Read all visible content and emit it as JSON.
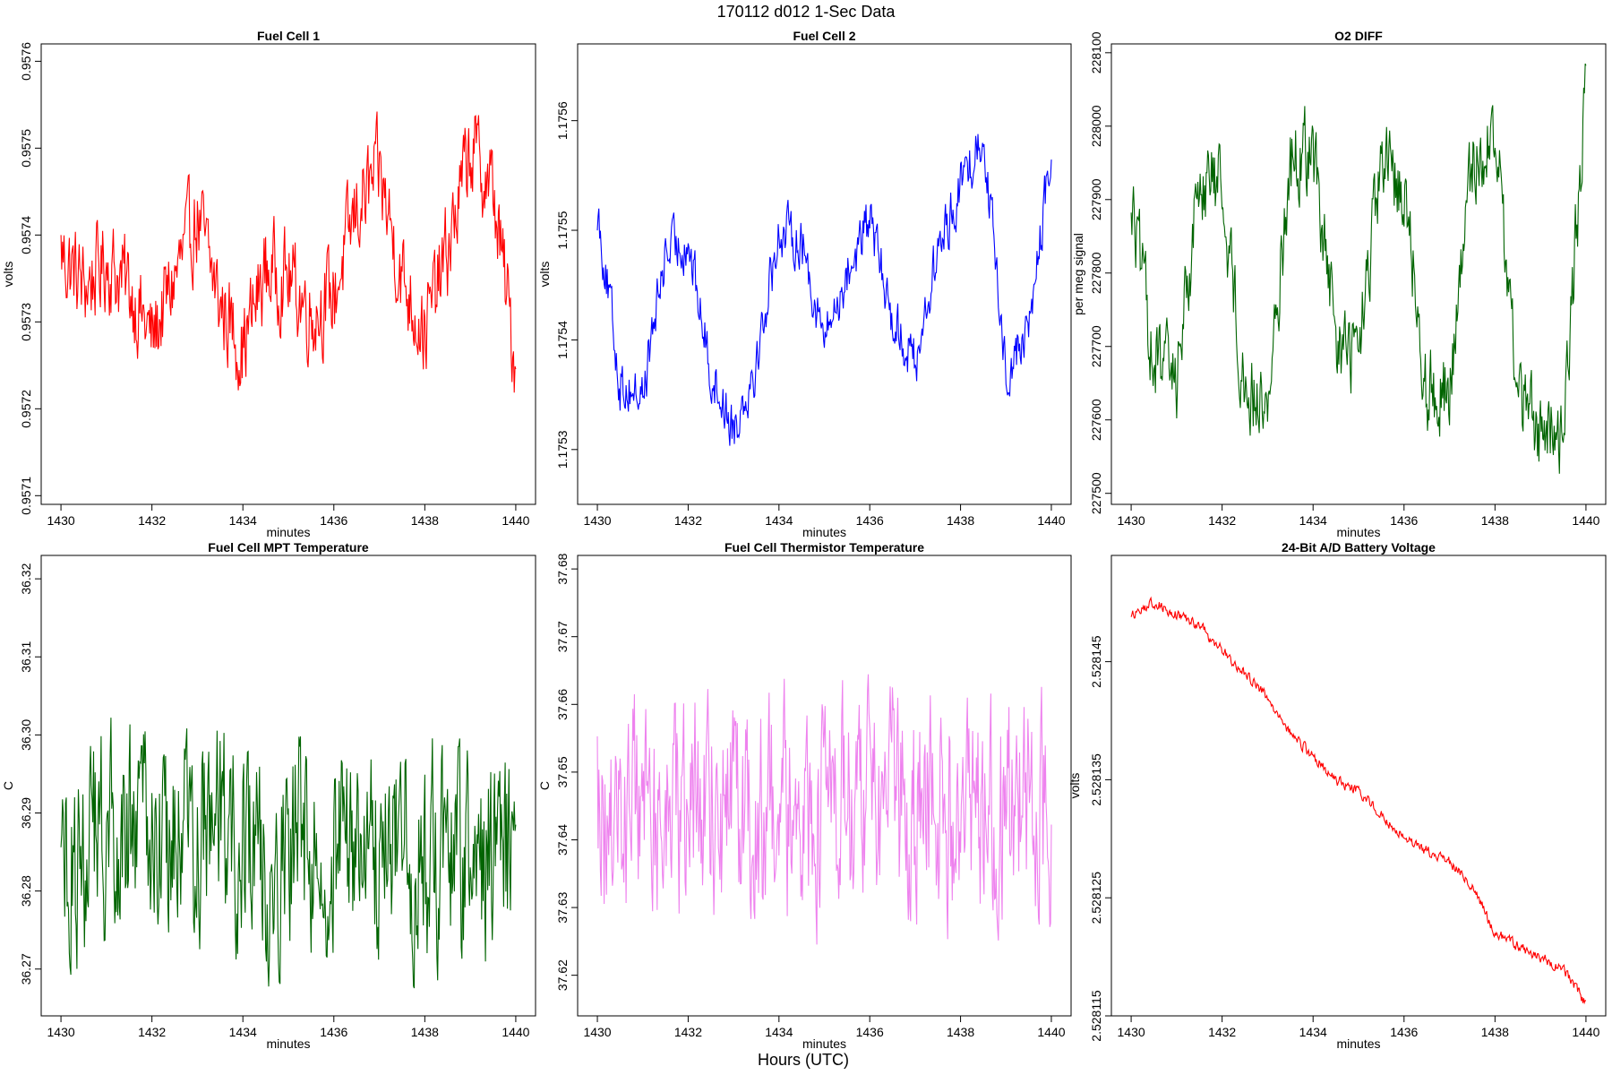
{
  "figure": {
    "title": "170112   d012   1-Sec Data",
    "xlabel": "Hours (UTC)"
  },
  "chart_data": [
    {
      "type": "line",
      "title": "Fuel Cell 1",
      "xlabel": "minutes",
      "ylabel": "volts",
      "color": "#ff0000",
      "xlim": [
        1430,
        1440
      ],
      "ylim": [
        0.95709,
        0.95762
      ],
      "xticks": [
        "1430",
        "1432",
        "1434",
        "1436",
        "1438",
        "1440"
      ],
      "yticks": [
        "0.9571",
        "0.9572",
        "0.9573",
        "0.9574",
        "0.9575",
        "0.9576"
      ],
      "series": [
        {
          "x": [
            1430.0,
            1430.5,
            1431.0,
            1431.5,
            1432.0,
            1432.5,
            1433.0,
            1433.5,
            1434.0,
            1434.5,
            1435.0,
            1435.5,
            1436.0,
            1436.5,
            1437.0,
            1437.5,
            1438.0,
            1438.5,
            1439.0,
            1439.5,
            1440.0
          ],
          "values": [
            0.95738,
            0.95734,
            0.95737,
            0.95734,
            0.95728,
            0.95735,
            0.95742,
            0.95732,
            0.95727,
            0.95736,
            0.95735,
            0.95731,
            0.95733,
            0.95743,
            0.95747,
            0.95735,
            0.95729,
            0.95738,
            0.9575,
            0.95745,
            0.95725
          ]
        }
      ]
    },
    {
      "type": "line",
      "title": "Fuel Cell 2",
      "xlabel": "minutes",
      "ylabel": "volts",
      "color": "#0000ff",
      "xlim": [
        1430,
        1440
      ],
      "ylim": [
        1.17525,
        1.17567
      ],
      "xticks": [
        "1430",
        "1432",
        "1434",
        "1436",
        "1438",
        "1440"
      ],
      "yticks": [
        "1.1753",
        "1.1754",
        "1.1755",
        "1.1756"
      ],
      "series": [
        {
          "x": [
            1430.0,
            1430.5,
            1431.0,
            1431.5,
            1432.0,
            1432.5,
            1433.0,
            1433.5,
            1434.0,
            1434.5,
            1435.0,
            1435.5,
            1436.0,
            1436.5,
            1437.0,
            1437.5,
            1438.0,
            1438.5,
            1439.0,
            1439.5,
            1440.0
          ],
          "values": [
            1.17552,
            1.17536,
            1.17535,
            1.17548,
            1.17549,
            1.17537,
            1.17532,
            1.17538,
            1.1755,
            1.17549,
            1.1754,
            1.17546,
            1.17551,
            1.17542,
            1.17538,
            1.17548,
            1.17554,
            1.17559,
            1.17537,
            1.17541,
            1.17557
          ]
        }
      ]
    },
    {
      "type": "line",
      "title": "O2 DIFF",
      "xlabel": "minutes",
      "ylabel": "per meg signal",
      "color": "#006400",
      "xlim": [
        1430,
        1440
      ],
      "ylim": [
        227485,
        228112
      ],
      "xticks": [
        "1430",
        "1432",
        "1434",
        "1436",
        "1438",
        "1440"
      ],
      "yticks": [
        "227500",
        "227600",
        "227700",
        "227800",
        "227900",
        "228000",
        "228100"
      ],
      "series": [
        {
          "x": [
            1430.0,
            1430.5,
            1431.0,
            1431.5,
            1432.0,
            1432.5,
            1433.0,
            1433.5,
            1434.0,
            1434.5,
            1435.0,
            1435.5,
            1436.0,
            1436.5,
            1437.0,
            1437.5,
            1438.0,
            1438.5,
            1439.0,
            1439.5,
            1440.0
          ],
          "values": [
            227900,
            227680,
            227660,
            227930,
            227920,
            227640,
            227620,
            227950,
            227970,
            227700,
            227690,
            227940,
            227920,
            227640,
            227640,
            227950,
            227990,
            227640,
            227580,
            227590,
            228050
          ]
        }
      ]
    },
    {
      "type": "line",
      "title": "Fuel Cell MPT Temperature",
      "xlabel": "minutes",
      "ylabel": "C",
      "color": "#006400",
      "xlim": [
        1430,
        1440
      ],
      "ylim": [
        36.264,
        36.323
      ],
      "xticks": [
        "1430",
        "1432",
        "1434",
        "1436",
        "1438",
        "1440"
      ],
      "yticks": [
        "36.27",
        "36.28",
        "36.29",
        "36.30",
        "36.31",
        "36.32"
      ],
      "series": [
        {
          "x": [
            1430.0,
            1430.5,
            1431.0,
            1431.5,
            1432.0,
            1432.5,
            1433.0,
            1433.5,
            1434.0,
            1434.5,
            1435.0,
            1435.5,
            1436.0,
            1436.5,
            1437.0,
            1437.5,
            1438.0,
            1438.5,
            1439.0,
            1439.5,
            1440.0
          ],
          "values": [
            36.283,
            36.285,
            36.287,
            36.289,
            36.288,
            36.286,
            36.287,
            36.288,
            36.285,
            36.284,
            36.286,
            36.287,
            36.288,
            36.285,
            36.286,
            36.285,
            36.284,
            36.285,
            36.283,
            36.284,
            36.283
          ]
        }
      ]
    },
    {
      "type": "line",
      "title": "Fuel Cell Thermistor Temperature",
      "xlabel": "minutes",
      "ylabel": "C",
      "color": "#ee82ee",
      "xlim": [
        1430,
        1440
      ],
      "ylim": [
        37.614,
        37.682
      ],
      "xticks": [
        "1430",
        "1432",
        "1434",
        "1436",
        "1438",
        "1440"
      ],
      "yticks": [
        "37.62",
        "37.63",
        "37.64",
        "37.65",
        "37.66",
        "37.67",
        "37.68"
      ],
      "series": [
        {
          "x": [
            1430.0,
            1430.5,
            1431.0,
            1431.5,
            1432.0,
            1432.5,
            1433.0,
            1433.5,
            1434.0,
            1434.5,
            1435.0,
            1435.5,
            1436.0,
            1436.5,
            1437.0,
            1437.5,
            1438.0,
            1438.5,
            1439.0,
            1439.5,
            1440.0
          ],
          "values": [
            37.644,
            37.645,
            37.644,
            37.645,
            37.644,
            37.645,
            37.644,
            37.645,
            37.644,
            37.644,
            37.645,
            37.645,
            37.644,
            37.645,
            37.644,
            37.645,
            37.644,
            37.645,
            37.644,
            37.645,
            37.644
          ]
        }
      ]
    },
    {
      "type": "line",
      "title": "24-Bit A/D Battery Voltage",
      "xlabel": "minutes",
      "ylabel": "volts",
      "color": "#ff0000",
      "xlim": [
        1430,
        1440
      ],
      "ylim": [
        2.528115,
        2.528154
      ],
      "xticks": [
        "1430",
        "1432",
        "1434",
        "1436",
        "1438",
        "1440"
      ],
      "yticks": [
        "2.528115",
        "2.528125",
        "2.528135",
        "2.528145"
      ],
      "series": [
        {
          "x": [
            1430.0,
            1430.5,
            1431.0,
            1431.5,
            1432.0,
            1432.5,
            1433.0,
            1433.5,
            1434.0,
            1434.5,
            1435.0,
            1435.5,
            1436.0,
            1436.5,
            1437.0,
            1437.5,
            1438.0,
            1438.5,
            1439.0,
            1439.5,
            1440.0
          ],
          "values": [
            2.528149,
            2.52815,
            2.528149,
            2.528148,
            2.528146,
            2.528144,
            2.528142,
            2.528139,
            2.528137,
            2.528135,
            2.528134,
            2.528132,
            2.52813,
            2.528129,
            2.528128,
            2.528126,
            2.528122,
            2.528121,
            2.52812,
            2.528119,
            2.528116
          ]
        }
      ]
    }
  ]
}
